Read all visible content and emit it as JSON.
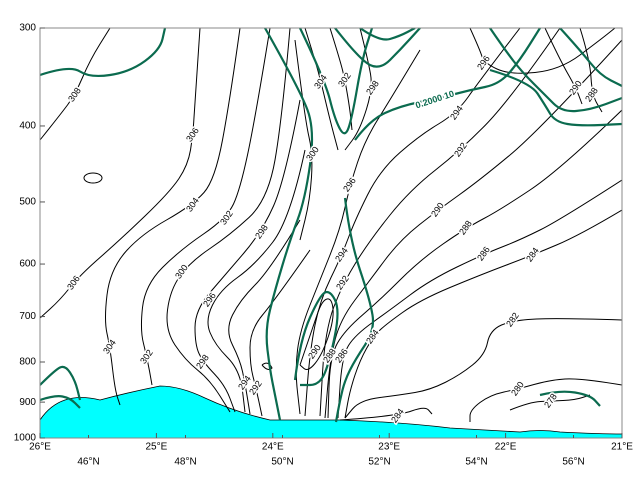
{
  "chart_data": {
    "type": "contour",
    "y_scale": "log",
    "ylim": [
      1000,
      300
    ],
    "yticks": [
      300,
      400,
      500,
      600,
      700,
      800,
      900,
      1000
    ],
    "xlim": [
      45,
      57
    ],
    "xticks": [
      {
        "value": 46,
        "label": "46°N"
      },
      {
        "value": 48,
        "label": "48°N"
      },
      {
        "value": 50,
        "label": "50°N"
      },
      {
        "value": 52,
        "label": "52°N"
      },
      {
        "value": 54,
        "label": "54°N"
      },
      {
        "value": 56,
        "label": "56°N"
      }
    ],
    "x2lim": [
      26,
      21
    ],
    "x2ticks": [
      {
        "value": 26,
        "label": "26°E"
      },
      {
        "value": 25,
        "label": "25°E"
      },
      {
        "value": 24,
        "label": "24°E"
      },
      {
        "value": 23,
        "label": "23°E"
      },
      {
        "value": 22,
        "label": "22°E"
      },
      {
        "value": 21,
        "label": "21°E"
      }
    ],
    "levels": [
      278,
      280,
      282,
      284,
      286,
      288,
      290,
      292,
      294,
      296,
      298,
      300,
      302,
      304,
      306,
      308
    ],
    "color": "#000000",
    "pv_label": "0.2000 10",
    "pv_color": "#0b6b4f",
    "terrain_color": "#00ffff"
  }
}
